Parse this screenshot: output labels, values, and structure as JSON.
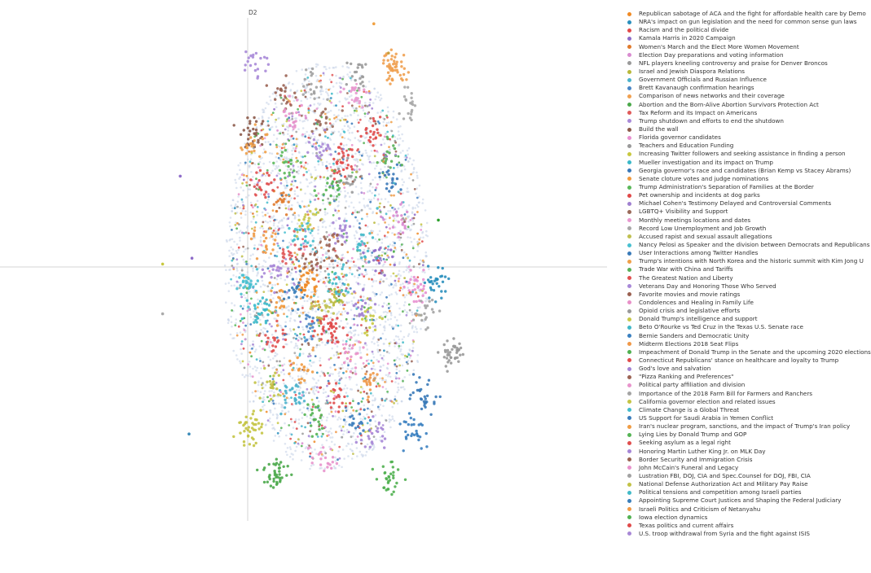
{
  "chart_data": {
    "type": "scatter",
    "title": "",
    "xlabel": "",
    "ylabel": "D2",
    "grid": false,
    "legend_position": "right",
    "series": [
      {
        "name": "Republican sabotage of ACA and the fight for affordable health care by Demo",
        "color": "#f08a24",
        "clusters": [
          {
            "x": 2.0,
            "y": -0.5,
            "n": 40
          }
        ]
      },
      {
        "name": "NRA's impact on gun legislation and the need for common sense gun laws",
        "color": "#2a8fbd",
        "clusters": [
          {
            "x": 6.4,
            "y": -0.5,
            "n": 30
          }
        ]
      },
      {
        "name": "Racism and the political divide",
        "color": "#e24a4a",
        "clusters": [
          {
            "x": 3.2,
            "y": 3.5,
            "n": 30
          }
        ]
      },
      {
        "name": "Kamala Harris in 2020 Campaign",
        "color": "#8e6cc9",
        "clusters": [
          {
            "x": 4.5,
            "y": 0.3,
            "n": 20
          }
        ]
      },
      {
        "name": "Women's March and the Elect More Women Movement",
        "color": "#e07a2c",
        "clusters": [
          {
            "x": 1.2,
            "y": 2.2,
            "n": 20
          }
        ]
      },
      {
        "name": "Election Day preparations and voting information",
        "color": "#d98bd0",
        "clusters": [
          {
            "x": 5.2,
            "y": 1.5,
            "n": 20
          }
        ]
      },
      {
        "name": "NFL players kneeling controversy and praise for Denver Broncos",
        "color": "#9a9a9a",
        "clusters": [
          {
            "x": 7.0,
            "y": -3.0,
            "n": 40
          }
        ]
      },
      {
        "name": "Israel and Jewish Diaspora Relations",
        "color": "#b8b83a",
        "clusters": [
          {
            "x": 3.0,
            "y": -1.0,
            "n": 25
          }
        ]
      },
      {
        "name": "Government Officials and Russian Influence",
        "color": "#4cb3cc",
        "clusters": [
          {
            "x": 1.5,
            "y": -4.5,
            "n": 30
          }
        ]
      },
      {
        "name": "Brett Kavanaugh confirmation hearings",
        "color": "#4a86c6",
        "clusters": [
          {
            "x": 2.2,
            "y": -2.0,
            "n": 20
          }
        ]
      },
      {
        "name": "Comparison of news networks and their coverage",
        "color": "#f0a050",
        "clusters": [
          {
            "x": 5.0,
            "y": 6.8,
            "n": 50
          }
        ]
      },
      {
        "name": "Abortion and the Born-Alive Abortion Survivors Protection Act",
        "color": "#4aa84a",
        "clusters": [
          {
            "x": 1.0,
            "y": -7.0,
            "n": 40
          }
        ]
      },
      {
        "name": "Tax Reform and its Impact on Americans",
        "color": "#e05a5a",
        "clusters": [
          {
            "x": 1.5,
            "y": 0.5,
            "n": 20
          }
        ]
      },
      {
        "name": "Trump shutdown and efforts to end the shutdown",
        "color": "#a98ad8",
        "clusters": [
          {
            "x": 0.3,
            "y": 7.0,
            "n": 20
          }
        ]
      },
      {
        "name": "Build the wall",
        "color": "#8c5a4a",
        "clusters": [
          {
            "x": 0.2,
            "y": 4.5,
            "n": 30
          }
        ]
      },
      {
        "name": "Florida governor candidates",
        "color": "#e890d0",
        "clusters": [
          {
            "x": 5.8,
            "y": -0.8,
            "n": 30
          }
        ]
      },
      {
        "name": "Teachers and Education Funding",
        "color": "#9a9a9a",
        "clusters": [
          {
            "x": 3.8,
            "y": 6.5,
            "n": 20
          }
        ]
      },
      {
        "name": "Increasing Twitter followers and seeking assistance in finding a person",
        "color": "#c8c840",
        "clusters": [
          {
            "x": 4.2,
            "y": -1.8,
            "n": 20
          }
        ]
      },
      {
        "name": "Mueller investigation and its impact on Trump",
        "color": "#3ab8c8",
        "clusters": [
          {
            "x": 0.5,
            "y": -1.5,
            "n": 30
          }
        ]
      },
      {
        "name": "Georgia governor's race and candidates (Brian Kemp vs Stacey Abrams)",
        "color": "#3a78b8",
        "clusters": [
          {
            "x": 4.8,
            "y": 3.0,
            "n": 20
          }
        ]
      },
      {
        "name": "Senate cloture votes and judge nominations",
        "color": "#f09a40",
        "clusters": [
          {
            "x": 1.0,
            "y": -1.2,
            "n": 20
          }
        ]
      },
      {
        "name": "Trump Administration's Separation of Families at the Border",
        "color": "#5ab85a",
        "clusters": [
          {
            "x": 1.4,
            "y": 3.5,
            "n": 20
          }
        ]
      },
      {
        "name": "Pet ownership and incidents at dog parks",
        "color": "#e04848",
        "clusters": [
          {
            "x": 2.8,
            "y": -2.0,
            "n": 40
          }
        ]
      },
      {
        "name": "Michael Cohen's Testimony Delayed and Controversial Comments",
        "color": "#a080d0",
        "clusters": [
          {
            "x": 3.8,
            "y": -1.2,
            "n": 20
          }
        ]
      },
      {
        "name": "LGBTQ+ Visibility and Support",
        "color": "#9a6a5a",
        "clusters": [
          {
            "x": 2.5,
            "y": 5.0,
            "n": 20
          }
        ]
      },
      {
        "name": "Monthly meetings locations and dates",
        "color": "#e898d0",
        "clusters": [
          {
            "x": 3.6,
            "y": 5.8,
            "n": 20
          }
        ]
      },
      {
        "name": "Record Low Unemployment and Job Growth",
        "color": "#a8a8a8",
        "clusters": [
          {
            "x": 5.5,
            "y": 5.5,
            "n": 20
          }
        ]
      },
      {
        "name": "Accused rapist and sexual assault allegations",
        "color": "#c0c050",
        "clusters": [
          {
            "x": 2.5,
            "y": -1.5,
            "n": 20
          }
        ]
      },
      {
        "name": "Nancy Pelosi as Speaker and the division between Democrats and Republicans",
        "color": "#48c0d0",
        "clusters": [
          {
            "x": 0.1,
            "y": -0.6,
            "n": 30
          }
        ]
      },
      {
        "name": "User Interactions among Twitter Handles",
        "color": "#3a7ab8",
        "clusters": [
          {
            "x": 6.0,
            "y": -4.5,
            "n": 30
          }
        ]
      },
      {
        "name": "Trump's intentions with North Korea and the historic summit with Kim Jong U",
        "color": "#f0a048",
        "clusters": [
          {
            "x": 0.2,
            "y": 4.2,
            "n": 20
          }
        ]
      },
      {
        "name": "Trade War with China and Tariffs",
        "color": "#58b058",
        "clusters": [
          {
            "x": 4.8,
            "y": 3.8,
            "n": 20
          }
        ]
      },
      {
        "name": "The Greatest Nation and Liberty",
        "color": "#e05050",
        "clusters": [
          {
            "x": 0.9,
            "y": -2.5,
            "n": 20
          }
        ]
      },
      {
        "name": "Veterans Day and Honoring Those Who Served",
        "color": "#a888d8",
        "clusters": [
          {
            "x": 1.0,
            "y": -0.2,
            "n": 20
          }
        ]
      },
      {
        "name": "Favorite movies and movie ratings",
        "color": "#9a6050",
        "clusters": [
          {
            "x": 2.2,
            "y": 0.2,
            "n": 20
          }
        ]
      },
      {
        "name": "Condolences and Healing in Family Life",
        "color": "#e890c8",
        "clusters": [
          {
            "x": 3.5,
            "y": -3.0,
            "n": 20
          }
        ]
      },
      {
        "name": "Opioid crisis and legislative efforts",
        "color": "#9a9a9a",
        "clusters": [
          {
            "x": 3.5,
            "y": 3.0,
            "n": 20
          }
        ]
      },
      {
        "name": "Donald Trump's intelligence and support",
        "color": "#c8c848",
        "clusters": [
          {
            "x": 2.0,
            "y": 1.5,
            "n": 20
          }
        ]
      },
      {
        "name": "Beto O'Rourke vs Ted Cruz in the Texas U.S. Senate race",
        "color": "#40b8c8",
        "clusters": [
          {
            "x": 4.0,
            "y": 0.8,
            "n": 20
          }
        ]
      },
      {
        "name": "Bernie Sanders and Democratic Unity",
        "color": "#3a80c0",
        "clusters": [
          {
            "x": 5.6,
            "y": -5.5,
            "n": 30
          }
        ]
      },
      {
        "name": "Midterm Elections 2018 Seat Flips",
        "color": "#f09848",
        "clusters": [
          {
            "x": 4.2,
            "y": -4.0,
            "n": 20
          }
        ]
      },
      {
        "name": "Impeachment of Donald Trump in the Senate and the upcoming 2020 elections",
        "color": "#50b050",
        "clusters": [
          {
            "x": 4.8,
            "y": -7.2,
            "n": 30
          }
        ]
      },
      {
        "name": "Connecticut Republicans' stance on healthcare and loyalty to Trump",
        "color": "#e04c4c",
        "clusters": [
          {
            "x": 3.0,
            "y": -4.5,
            "n": 20
          }
        ]
      },
      {
        "name": "God's love and salvation",
        "color": "#a484d4",
        "clusters": [
          {
            "x": 3.2,
            "y": 1.2,
            "n": 20
          }
        ]
      },
      {
        "name": "\"Pizza Ranking and Preferences\"",
        "color": "#9c6454",
        "clusters": [
          {
            "x": 2.8,
            "y": 0.6,
            "n": 20
          }
        ]
      },
      {
        "name": "Political party affiliation and division",
        "color": "#e894cc",
        "clusters": [
          {
            "x": 2.6,
            "y": -6.5,
            "n": 20
          }
        ]
      },
      {
        "name": "Importance of the 2018 Farm Bill for Farmers and Ranchers",
        "color": "#a4a4a4",
        "clusters": [
          {
            "x": 6.0,
            "y": -1.5,
            "n": 20
          }
        ]
      },
      {
        "name": "California governor election and related issues",
        "color": "#c4c444",
        "clusters": [
          {
            "x": 0.0,
            "y": -5.5,
            "n": 40
          }
        ]
      },
      {
        "name": "Climate Change is a Global Threat",
        "color": "#44bccc",
        "clusters": [
          {
            "x": 1.8,
            "y": 1.0,
            "n": 20
          }
        ]
      },
      {
        "name": "US Support for Saudi Arabia in Yemen Conflict",
        "color": "#3a7cbc",
        "clusters": [
          {
            "x": 3.8,
            "y": -5.2,
            "n": 20
          }
        ]
      },
      {
        "name": "Iran's nuclear program, sanctions, and the impact of Trump's Iran policy",
        "color": "#f09c44",
        "clusters": [
          {
            "x": 1.8,
            "y": -3.5,
            "n": 20
          }
        ]
      },
      {
        "name": "Lying Lies by Donald Trump and GOP",
        "color": "#54b454",
        "clusters": [
          {
            "x": 2.8,
            "y": 2.8,
            "n": 20
          }
        ]
      },
      {
        "name": "Seeking asylum as a legal right",
        "color": "#e04e4e",
        "clusters": [
          {
            "x": 0.6,
            "y": 2.8,
            "n": 20
          }
        ]
      },
      {
        "name": "Honoring Martin Luther King Jr. on MLK Day",
        "color": "#a686d6",
        "clusters": [
          {
            "x": 4.3,
            "y": -5.8,
            "n": 20
          }
        ]
      },
      {
        "name": "Border Security and Immigration Crisis",
        "color": "#9a6252",
        "clusters": [
          {
            "x": 1.2,
            "y": 6.0,
            "n": 20
          }
        ]
      },
      {
        "name": "John McCain's Funeral and Legacy",
        "color": "#e892cc",
        "clusters": [
          {
            "x": 1.6,
            "y": 5.2,
            "n": 20
          }
        ]
      },
      {
        "name": "Lustration FBI, DOJ, CIA and Spec.Counsel for DOJ, FBI, CIA",
        "color": "#a2a2a2",
        "clusters": [
          {
            "x": 2.2,
            "y": 6.2,
            "n": 20
          }
        ]
      },
      {
        "name": "National Defense Authorization Act and Military Pay Raise",
        "color": "#c2c246",
        "clusters": [
          {
            "x": 0.9,
            "y": -4.0,
            "n": 20
          }
        ]
      },
      {
        "name": "Political tensions and competition among Israeli parties",
        "color": "#42bac8",
        "clusters": [
          {
            "x": 3.0,
            "y": -0.5,
            "n": 20
          }
        ]
      },
      {
        "name": "Appointing Supreme Court Justices and Shaping the Federal Judiciary",
        "color": "#3a7eba",
        "clusters": [
          {
            "x": 1.6,
            "y": -0.8,
            "n": 20
          }
        ]
      },
      {
        "name": "Israeli Politics and Criticism of Netanyahu",
        "color": "#f09a46",
        "clusters": [
          {
            "x": 0.6,
            "y": 0.8,
            "n": 20
          }
        ]
      },
      {
        "name": "Iowa election dynamics",
        "color": "#52b252",
        "clusters": [
          {
            "x": 2.3,
            "y": -5.2,
            "n": 20
          }
        ]
      },
      {
        "name": "Texas politics and current affairs",
        "color": "#e04a4a",
        "clusters": [
          {
            "x": 4.2,
            "y": 4.5,
            "n": 20
          }
        ]
      },
      {
        "name": "U.S. troop withdrawal from Syria and the fight against ISIS",
        "color": "#a888d6",
        "clusters": [
          {
            "x": 2.5,
            "y": 4.0,
            "n": 20
          }
        ]
      }
    ],
    "outliers": [
      {
        "x": -2.3,
        "y": 3.1,
        "color": "#8e6cc9"
      },
      {
        "x": -2.0,
        "y": -5.7,
        "color": "#3a8ab8"
      },
      {
        "x": -2.9,
        "y": -1.6,
        "color": "#aaaaaa"
      },
      {
        "x": -1.9,
        "y": 0.3,
        "color": "#8e6cc9"
      },
      {
        "x": -2.9,
        "y": 0.1,
        "color": "#c8c840"
      },
      {
        "x": 6.5,
        "y": 1.6,
        "color": "#2ca02c"
      },
      {
        "x": 4.3,
        "y": 8.3,
        "color": "#f0a040"
      },
      {
        "x": 4.8,
        "y": 7.3,
        "color": "#c8a040"
      }
    ],
    "background_cloud": {
      "center_x": 2.7,
      "center_y": 0.0,
      "radius_x": 3.5,
      "radius_y": 7.0,
      "n": 2200,
      "color": "#c8d4e8"
    },
    "xlim": [
      -3.5,
      8.5
    ],
    "ylim": [
      -7.9,
      8.8
    ]
  }
}
